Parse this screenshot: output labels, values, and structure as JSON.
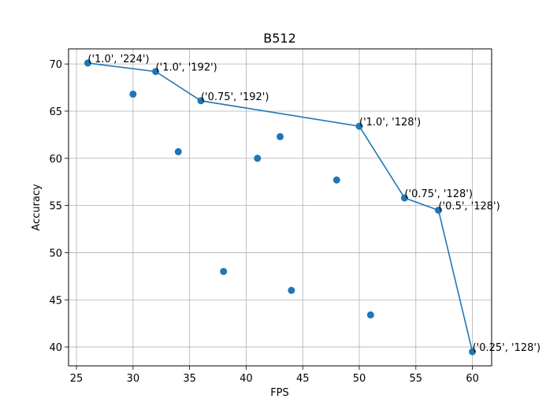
{
  "chart_data": {
    "type": "scatter",
    "title": "B512",
    "xlabel": "FPS",
    "ylabel": "Accuracy",
    "xlim": [
      24.3,
      61.7
    ],
    "ylim": [
      38.0,
      71.6
    ],
    "xticks": [
      25,
      30,
      35,
      40,
      45,
      50,
      55,
      60
    ],
    "yticks": [
      40,
      45,
      50,
      55,
      60,
      65,
      70
    ],
    "grid": true,
    "color": "#1f77b4",
    "points": [
      {
        "x": 26,
        "y": 70.1
      },
      {
        "x": 30,
        "y": 66.8
      },
      {
        "x": 32,
        "y": 69.2
      },
      {
        "x": 34,
        "y": 60.7
      },
      {
        "x": 36,
        "y": 66.1
      },
      {
        "x": 38,
        "y": 48.0
      },
      {
        "x": 41,
        "y": 60.0
      },
      {
        "x": 43,
        "y": 62.3
      },
      {
        "x": 44,
        "y": 46.0
      },
      {
        "x": 48,
        "y": 57.7
      },
      {
        "x": 50,
        "y": 63.4
      },
      {
        "x": 51,
        "y": 43.4
      },
      {
        "x": 54,
        "y": 55.8
      },
      {
        "x": 57,
        "y": 54.5
      },
      {
        "x": 60,
        "y": 39.5
      }
    ],
    "frontier": [
      {
        "x": 26,
        "y": 70.1,
        "label": "('1.0', '224')"
      },
      {
        "x": 32,
        "y": 69.2,
        "label": "('1.0', '192')"
      },
      {
        "x": 36,
        "y": 66.1,
        "label": "('0.75', '192')"
      },
      {
        "x": 50,
        "y": 63.4,
        "label": "('1.0', '128')"
      },
      {
        "x": 54,
        "y": 55.8,
        "label": "('0.75', '128')"
      },
      {
        "x": 57,
        "y": 54.5,
        "label": "('0.5', '128')"
      },
      {
        "x": 60,
        "y": 39.5,
        "label": "('0.25', '128')"
      }
    ]
  }
}
